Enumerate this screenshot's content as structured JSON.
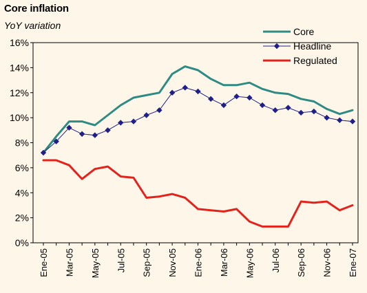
{
  "chart_data": {
    "type": "line",
    "title": "Core inflation",
    "subtitle": "YoY variation",
    "xlabel": "",
    "ylabel": "",
    "ylim": [
      0,
      16
    ],
    "y_ticks": [
      "0%",
      "2%",
      "4%",
      "6%",
      "8%",
      "10%",
      "12%",
      "14%",
      "16%"
    ],
    "x_tick_labels": [
      "Ene-05",
      "Mar-05",
      "May-05",
      "Jul-05",
      "Sep-05",
      "Nov-05",
      "Ene-06",
      "Mar-06",
      "May-06",
      "Jul-06",
      "Sep-06",
      "Nov-06",
      "Ene-07"
    ],
    "categories": [
      "Ene-05",
      "Feb-05",
      "Mar-05",
      "Apr-05",
      "May-05",
      "Jun-05",
      "Jul-05",
      "Aug-05",
      "Sep-05",
      "Oct-05",
      "Nov-05",
      "Dec-05",
      "Ene-06",
      "Feb-06",
      "Mar-06",
      "Apr-06",
      "May-06",
      "Jun-06",
      "Jul-06",
      "Aug-06",
      "Sep-06",
      "Oct-06",
      "Nov-06",
      "Dec-06",
      "Ene-07"
    ],
    "grid": false,
    "legend_position": "top-right",
    "series": [
      {
        "name": "Core",
        "color": "#2e8b84",
        "marker": "none",
        "values": [
          7.2,
          8.5,
          9.7,
          9.7,
          9.4,
          10.2,
          11.0,
          11.6,
          11.8,
          12.0,
          13.5,
          14.1,
          13.8,
          13.1,
          12.6,
          12.6,
          12.8,
          12.3,
          12.0,
          11.9,
          11.5,
          11.3,
          10.7,
          10.3,
          10.6
        ]
      },
      {
        "name": "Headline",
        "color": "#1f1f8a",
        "marker": "diamond",
        "values": [
          7.2,
          8.1,
          9.2,
          8.7,
          8.6,
          9.0,
          9.6,
          9.7,
          10.2,
          10.6,
          12.0,
          12.4,
          12.1,
          11.5,
          11.0,
          11.7,
          11.6,
          11.0,
          10.6,
          10.8,
          10.4,
          10.5,
          10.0,
          9.8,
          9.7
        ]
      },
      {
        "name": "Regulated",
        "color": "#e3231b",
        "marker": "none",
        "values": [
          6.6,
          6.6,
          6.2,
          5.1,
          5.9,
          6.1,
          5.3,
          5.2,
          3.6,
          3.7,
          3.9,
          3.6,
          2.7,
          2.6,
          2.5,
          2.7,
          1.7,
          1.3,
          1.3,
          1.3,
          3.3,
          3.2,
          3.3,
          2.6,
          3.0
        ]
      }
    ]
  }
}
